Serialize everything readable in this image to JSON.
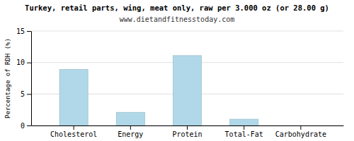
{
  "chart_data": {
    "type": "bar",
    "title": "Turkey, retail parts, wing, meat only, raw per 3.000 oz (or 28.00 g)",
    "subtitle": "www.dietandfitnesstoday.com",
    "ylabel": "Percentage of RDH (%)",
    "categories": [
      "Cholesterol",
      "Energy",
      "Protein",
      "Total-Fat",
      "Carbohydrate"
    ],
    "values": [
      8.9,
      2.1,
      11.1,
      1.0,
      0.0
    ],
    "color": "#b0d8e8",
    "ylim": [
      0,
      15
    ],
    "yticks": [
      0,
      5,
      10,
      15
    ],
    "grid": true
  }
}
